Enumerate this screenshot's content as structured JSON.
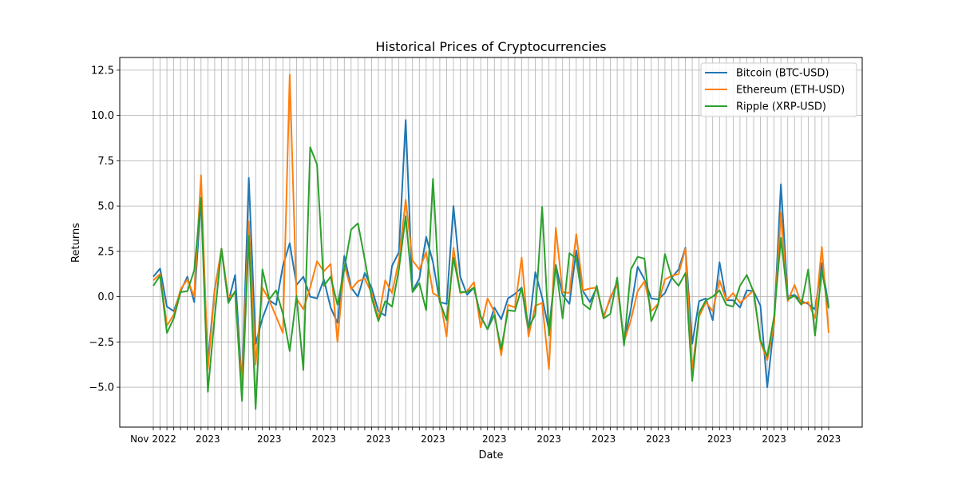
{
  "chart_data": {
    "type": "line",
    "title": "Historical Prices of Cryptocurrencies",
    "xlabel": "Date",
    "ylabel": "Returns",
    "ylim": [
      -7.2,
      13.2
    ],
    "y_ticks": [
      -5.0,
      -2.5,
      0.0,
      2.5,
      5.0,
      7.5,
      10.0,
      12.5
    ],
    "y_tick_labels": [
      "−5.0",
      "−2.5",
      "0.0",
      "2.5",
      "5.0",
      "7.5",
      "10.0",
      "12.5"
    ],
    "x_tick_labels": [
      "Nov 2022",
      "2023"
    ],
    "grid": true,
    "legend_position": "top-right",
    "series": [
      {
        "name": "Bitcoin (BTC-USD)",
        "color": "#1f77b4",
        "values": [
          1.1,
          1.55,
          -0.55,
          -0.8,
          0.3,
          1.1,
          -0.3,
          5.4,
          -3.6,
          0.4,
          2.6,
          -0.3,
          1.2,
          -4.9,
          6.55,
          -2.6,
          -1.2,
          -0.2,
          -0.45,
          1.7,
          2.95,
          0.65,
          1.1,
          0.0,
          -0.1,
          0.95,
          -0.6,
          -1.45,
          2.25,
          0.5,
          0.0,
          1.3,
          0.5,
          -0.8,
          -1.05,
          1.7,
          2.45,
          9.75,
          0.3,
          1.0,
          3.3,
          1.9,
          -0.3,
          -0.4,
          5.0,
          1.1,
          0.1,
          0.5,
          -1.1,
          -1.8,
          -0.6,
          -1.25,
          -0.1,
          0.15,
          0.5,
          -1.95,
          1.35,
          -0.05,
          -1.85,
          1.75,
          0.1,
          -0.4,
          2.55,
          0.3,
          -0.3,
          0.5,
          -1.1,
          -0.1,
          0.8,
          -2.5,
          -0.7,
          1.65,
          0.95,
          -0.1,
          -0.15,
          0.2,
          1.05,
          1.5,
          2.7,
          -2.6,
          -0.25,
          -0.1,
          -1.3,
          1.9,
          -0.2,
          -0.2,
          -0.6,
          0.35,
          0.3,
          -0.5,
          -5.0,
          -1.5,
          6.2,
          0.0,
          0.1,
          -0.25,
          -0.4,
          -0.7,
          1.85,
          -0.55
        ]
      },
      {
        "name": "Ethereum (ETH-USD)",
        "color": "#ff7f0e",
        "values": [
          0.9,
          1.25,
          -1.6,
          -1.0,
          0.4,
          0.95,
          0.0,
          6.7,
          -4.0,
          0.3,
          2.65,
          -0.05,
          0.2,
          -5.0,
          4.15,
          -3.75,
          0.5,
          -0.2,
          -1.1,
          -2.0,
          12.25,
          -0.1,
          -0.7,
          0.5,
          1.95,
          1.4,
          1.8,
          -2.5,
          1.75,
          0.4,
          0.85,
          1.0,
          0.2,
          -1.25,
          0.9,
          0.2,
          2.0,
          5.35,
          2.0,
          1.5,
          2.45,
          0.2,
          -0.05,
          -2.2,
          2.7,
          0.2,
          0.3,
          0.8,
          -1.7,
          -0.1,
          -0.85,
          -3.25,
          -0.45,
          -0.6,
          2.15,
          -2.2,
          -0.5,
          -0.35,
          -4.0,
          3.8,
          0.25,
          0.2,
          3.45,
          0.35,
          0.45,
          0.5,
          -1.2,
          0.0,
          0.65,
          -2.5,
          -1.3,
          0.3,
          0.85,
          -0.8,
          -0.4,
          0.95,
          1.15,
          1.25,
          2.65,
          -4.0,
          -1.1,
          -0.3,
          -0.8,
          0.9,
          -0.2,
          0.2,
          -0.35,
          0.0,
          0.35,
          -2.5,
          -3.5,
          -1.5,
          4.65,
          -0.25,
          0.65,
          -0.4,
          -0.3,
          -1.2,
          2.75,
          -2.0
        ]
      },
      {
        "name": "Ripple (XRP-USD)",
        "color": "#2ca02c",
        "values": [
          0.6,
          1.15,
          -2.0,
          -1.2,
          0.25,
          0.3,
          1.45,
          5.45,
          -5.25,
          -1.1,
          2.65,
          -0.35,
          0.3,
          -5.75,
          3.35,
          -6.2,
          1.5,
          -0.15,
          0.35,
          -0.95,
          -3.0,
          0.05,
          -4.05,
          8.25,
          7.3,
          0.6,
          1.1,
          -0.45,
          1.5,
          3.7,
          4.05,
          2.05,
          -0.05,
          -1.35,
          -0.25,
          -0.55,
          1.5,
          4.45,
          0.25,
          0.75,
          -0.75,
          6.5,
          -0.3,
          -1.3,
          2.15,
          0.25,
          0.25,
          0.5,
          -1.1,
          -1.8,
          -1.0,
          -2.9,
          -0.75,
          -0.8,
          0.5,
          -1.7,
          -1.0,
          4.95,
          -2.15,
          1.75,
          -1.2,
          2.4,
          2.1,
          -0.4,
          -0.7,
          0.6,
          -1.2,
          -0.95,
          1.05,
          -2.7,
          1.5,
          2.2,
          2.1,
          -1.35,
          -0.45,
          2.35,
          1.05,
          0.6,
          1.3,
          -4.65,
          -0.9,
          -0.2,
          0.0,
          0.35,
          -0.45,
          -0.55,
          0.6,
          1.2,
          0.25,
          -2.4,
          -3.3,
          -1.1,
          3.25,
          -0.15,
          0.05,
          -0.45,
          1.5,
          -2.15,
          1.45,
          -0.65
        ]
      }
    ]
  }
}
